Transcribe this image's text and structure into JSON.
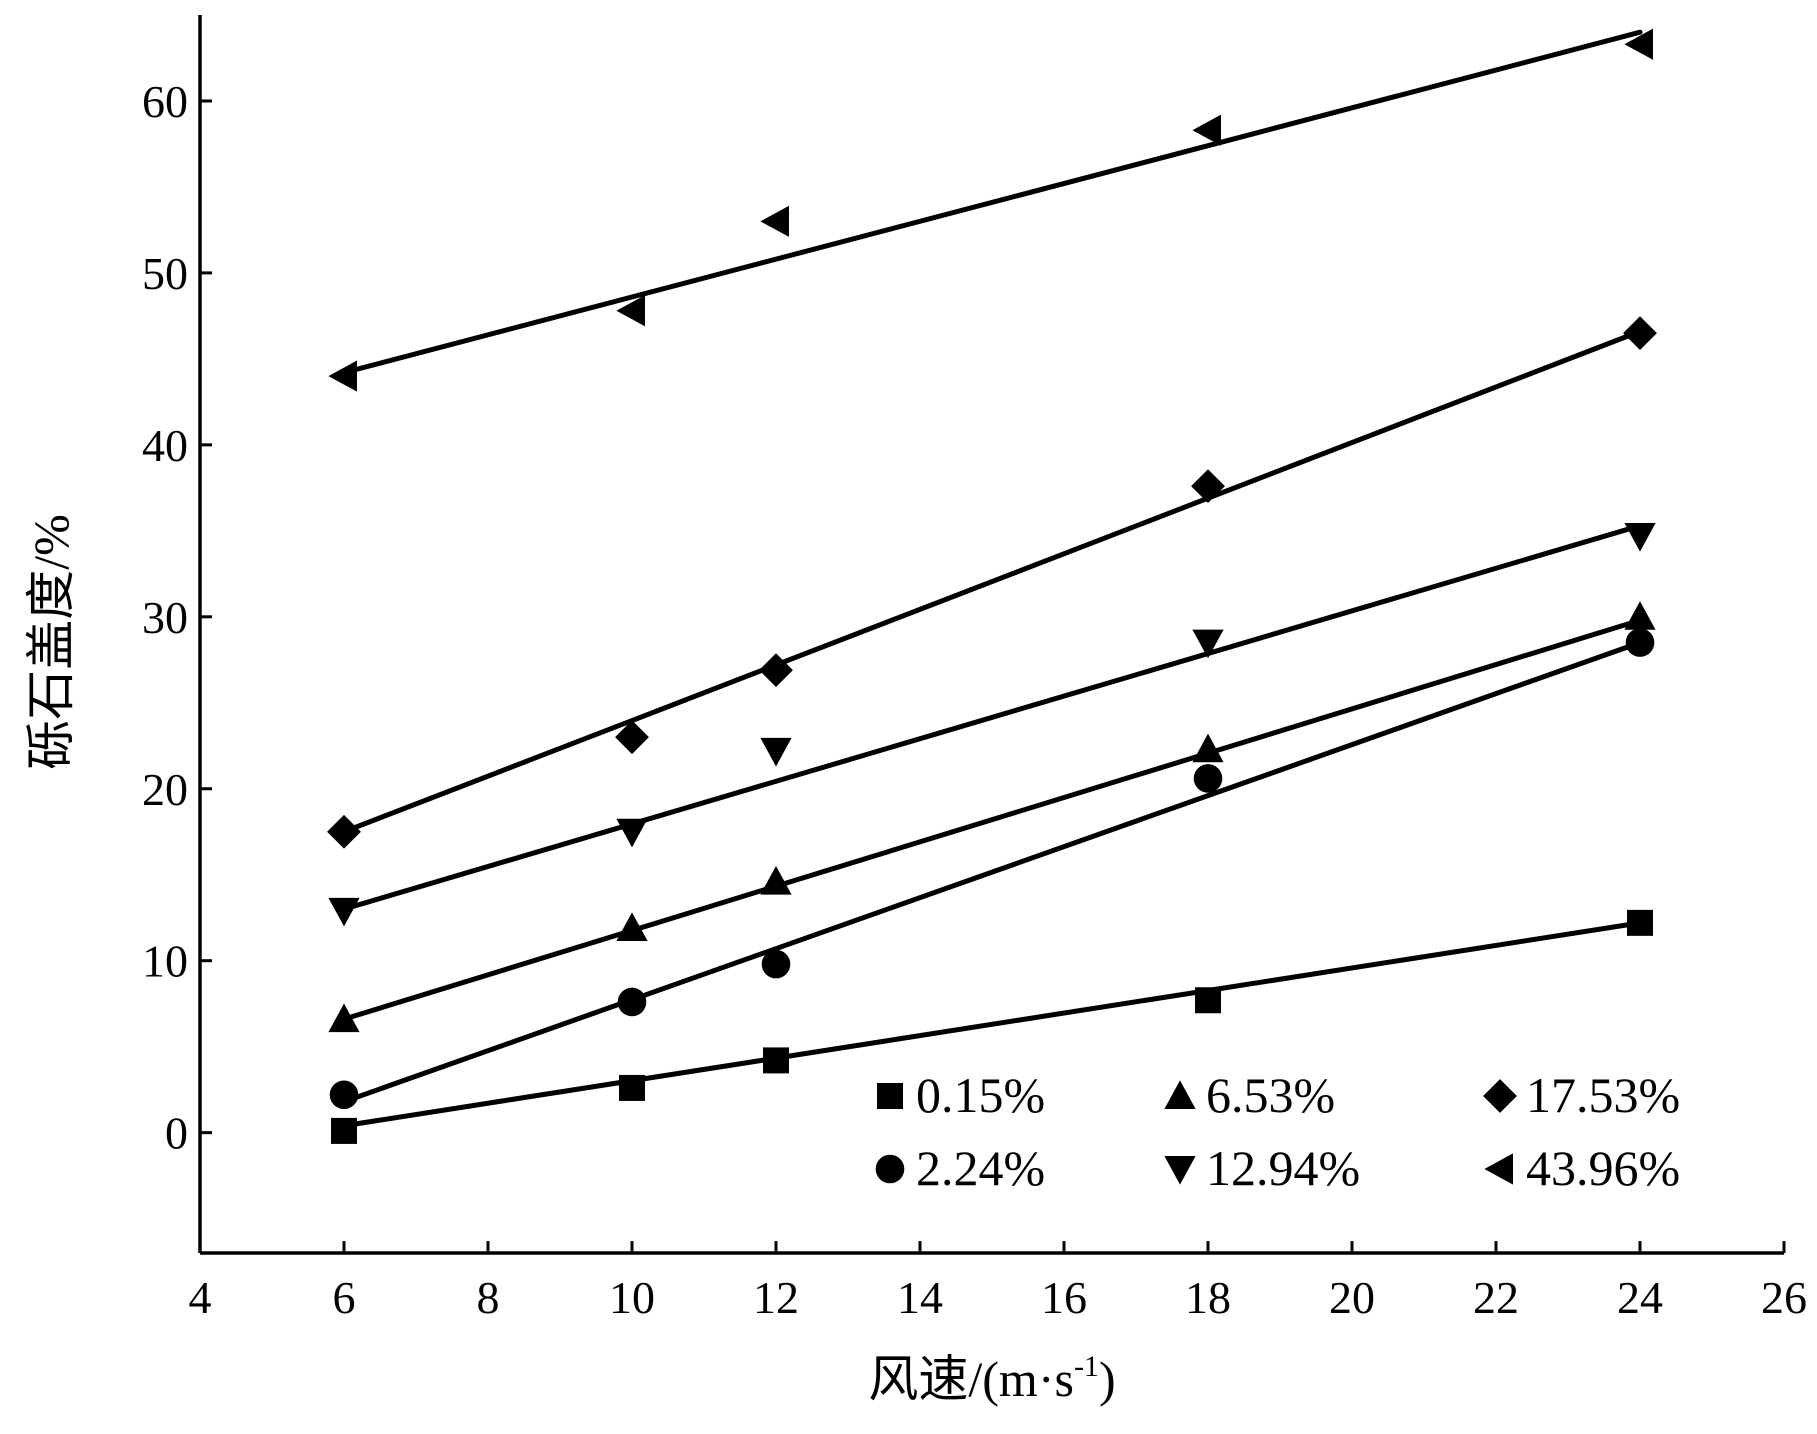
{
  "chart_data": {
    "type": "scatter",
    "title": "",
    "xlabel": "风速/(m·s",
    "xlabel_sup": "-1",
    "xlabel_close": ")",
    "ylabel": "砾石盖度/%",
    "xlim": [
      4,
      26
    ],
    "ylim": [
      -7,
      65
    ],
    "xticks": [
      4,
      6,
      8,
      10,
      12,
      14,
      16,
      18,
      20,
      22,
      24,
      26
    ],
    "yticks": [
      0,
      10,
      20,
      30,
      40,
      50,
      60
    ],
    "grid": false,
    "legend_position": "bottom-right",
    "fit_lines": true,
    "series": [
      {
        "name": "0.15%",
        "marker": "square",
        "x": [
          6,
          10,
          12,
          18,
          24
        ],
        "y": [
          0.1,
          2.6,
          4.2,
          7.7,
          12.2
        ],
        "fit": [
          [
            6,
            0.4
          ],
          [
            24,
            12.2
          ]
        ]
      },
      {
        "name": "6.53%",
        "marker": "triangle-up",
        "x": [
          6,
          10,
          12,
          18,
          24
        ],
        "y": [
          6.6,
          11.9,
          14.6,
          22.3,
          30.0
        ],
        "fit": [
          [
            6,
            6.6
          ],
          [
            24,
            29.8
          ]
        ]
      },
      {
        "name": "17.53%",
        "marker": "diamond",
        "x": [
          6,
          10,
          12,
          18,
          24
        ],
        "y": [
          17.5,
          23.0,
          26.9,
          37.6,
          46.5
        ],
        "fit": [
          [
            6,
            17.5
          ],
          [
            24,
            46.6
          ]
        ]
      },
      {
        "name": "2.24%",
        "marker": "circle",
        "x": [
          6,
          10,
          12,
          18,
          24
        ],
        "y": [
          2.2,
          7.6,
          9.8,
          20.6,
          28.5
        ],
        "fit": [
          [
            6,
            1.8
          ],
          [
            24,
            28.5
          ]
        ]
      },
      {
        "name": "12.94%",
        "marker": "triangle-down",
        "x": [
          6,
          10,
          12,
          18,
          24
        ],
        "y": [
          12.9,
          17.5,
          22.2,
          28.5,
          34.7
        ],
        "fit": [
          [
            6,
            13.0
          ],
          [
            24,
            35.3
          ]
        ]
      },
      {
        "name": "43.96%",
        "marker": "triangle-left",
        "x": [
          6,
          10,
          12,
          18,
          24
        ],
        "y": [
          44.0,
          47.8,
          53.0,
          58.3,
          63.3
        ],
        "fit": [
          [
            6,
            44.2
          ],
          [
            24,
            64.0
          ]
        ]
      }
    ]
  }
}
